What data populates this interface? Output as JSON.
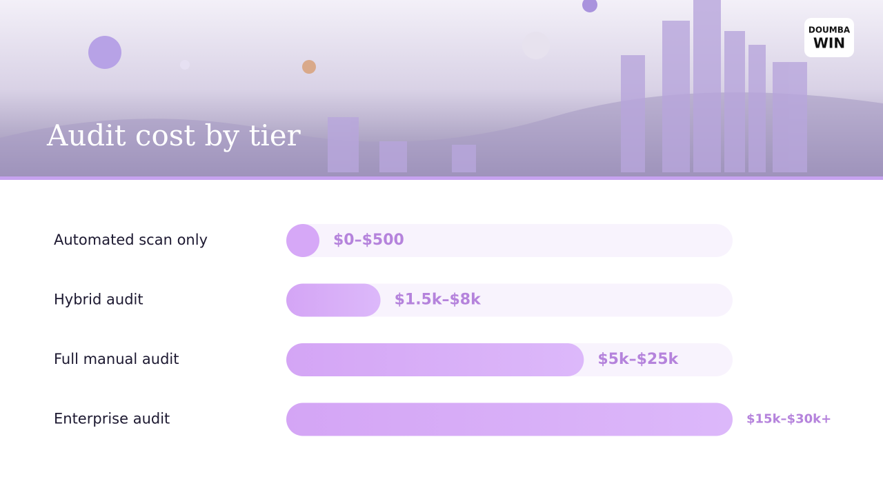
{
  "header": {
    "title": "Audit cost by tier",
    "logo": [
      "DOUMBA",
      "WIN"
    ]
  },
  "chart_data": {
    "type": "range-bar",
    "categories": [
      "Automated scan only",
      "Hybrid audit",
      "Full manual audit",
      "Enterprise audit"
    ],
    "ranges": [
      [
        0,
        500
      ],
      [
        1500,
        8000
      ],
      [
        5000,
        25000
      ],
      [
        15000,
        30000
      ]
    ],
    "value_labels": [
      "$0–$500",
      "$1.5k–$8k",
      "$5k–$25k",
      "$15k–$30k+"
    ],
    "xlim": [
      0,
      22500
    ],
    "color": "#d6a8f7",
    "track_color": "#f8f3fd",
    "label_color": "#b583dc"
  }
}
